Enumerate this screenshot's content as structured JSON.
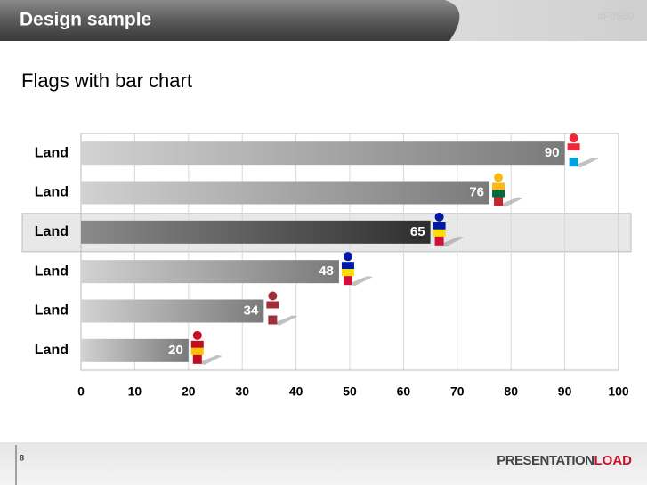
{
  "header": {
    "title": "Design sample",
    "code": "#F0560"
  },
  "chart_data": {
    "type": "bar",
    "orientation": "horizontal",
    "title": "Flags with bar chart",
    "categories": [
      "Land",
      "Land",
      "Land",
      "Land",
      "Land",
      "Land"
    ],
    "values": [
      90,
      76,
      65,
      48,
      34,
      20
    ],
    "xlim": [
      0,
      100
    ],
    "xticks": [
      0,
      10,
      20,
      30,
      40,
      50,
      60,
      70,
      80,
      90,
      100
    ],
    "grid": true,
    "highlight_index": 2
  },
  "footer": {
    "page": "8",
    "logo_a": "PRESENTATION",
    "logo_b": "LOAD"
  }
}
